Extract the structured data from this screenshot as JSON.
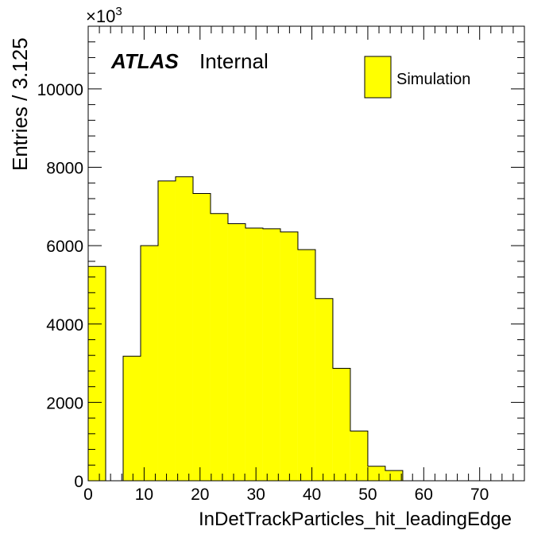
{
  "chart_data": {
    "type": "bar",
    "title": "",
    "xlabel": "InDetTrackParticles_hit_leadingEdge",
    "ylabel": "Entries / 3.125",
    "y_multiplier_label": "×10",
    "y_multiplier_exponent": "3",
    "bin_width": 3.125,
    "xlim": [
      0,
      78
    ],
    "ylim": [
      0,
      11600
    ],
    "x_ticks": [
      0,
      10,
      20,
      30,
      40,
      50,
      60,
      70
    ],
    "y_ticks": [
      0,
      2000,
      4000,
      6000,
      8000,
      10000
    ],
    "series": [
      {
        "name": "Simulation",
        "color": "#ffff00",
        "bin_edges": [
          0,
          3.125,
          6.25,
          9.375,
          12.5,
          15.625,
          18.75,
          21.875,
          25,
          28.125,
          31.25,
          34.375,
          37.5,
          40.625,
          43.75,
          46.875,
          50,
          53.125,
          56.25,
          59.375,
          62.5,
          65.625,
          68.75,
          71.875,
          75,
          78.125
        ],
        "values": [
          5470,
          0,
          3180,
          6000,
          7650,
          7760,
          7330,
          6820,
          6560,
          6450,
          6430,
          6350,
          5900,
          4650,
          2870,
          1270,
          370,
          260,
          0,
          0,
          0,
          0,
          0,
          0,
          0
        ]
      }
    ],
    "legend": {
      "position": "top-right",
      "entries": [
        "Simulation"
      ]
    },
    "annotation": {
      "bold_text": "ATLAS",
      "text": "Internal"
    },
    "grid": false
  }
}
